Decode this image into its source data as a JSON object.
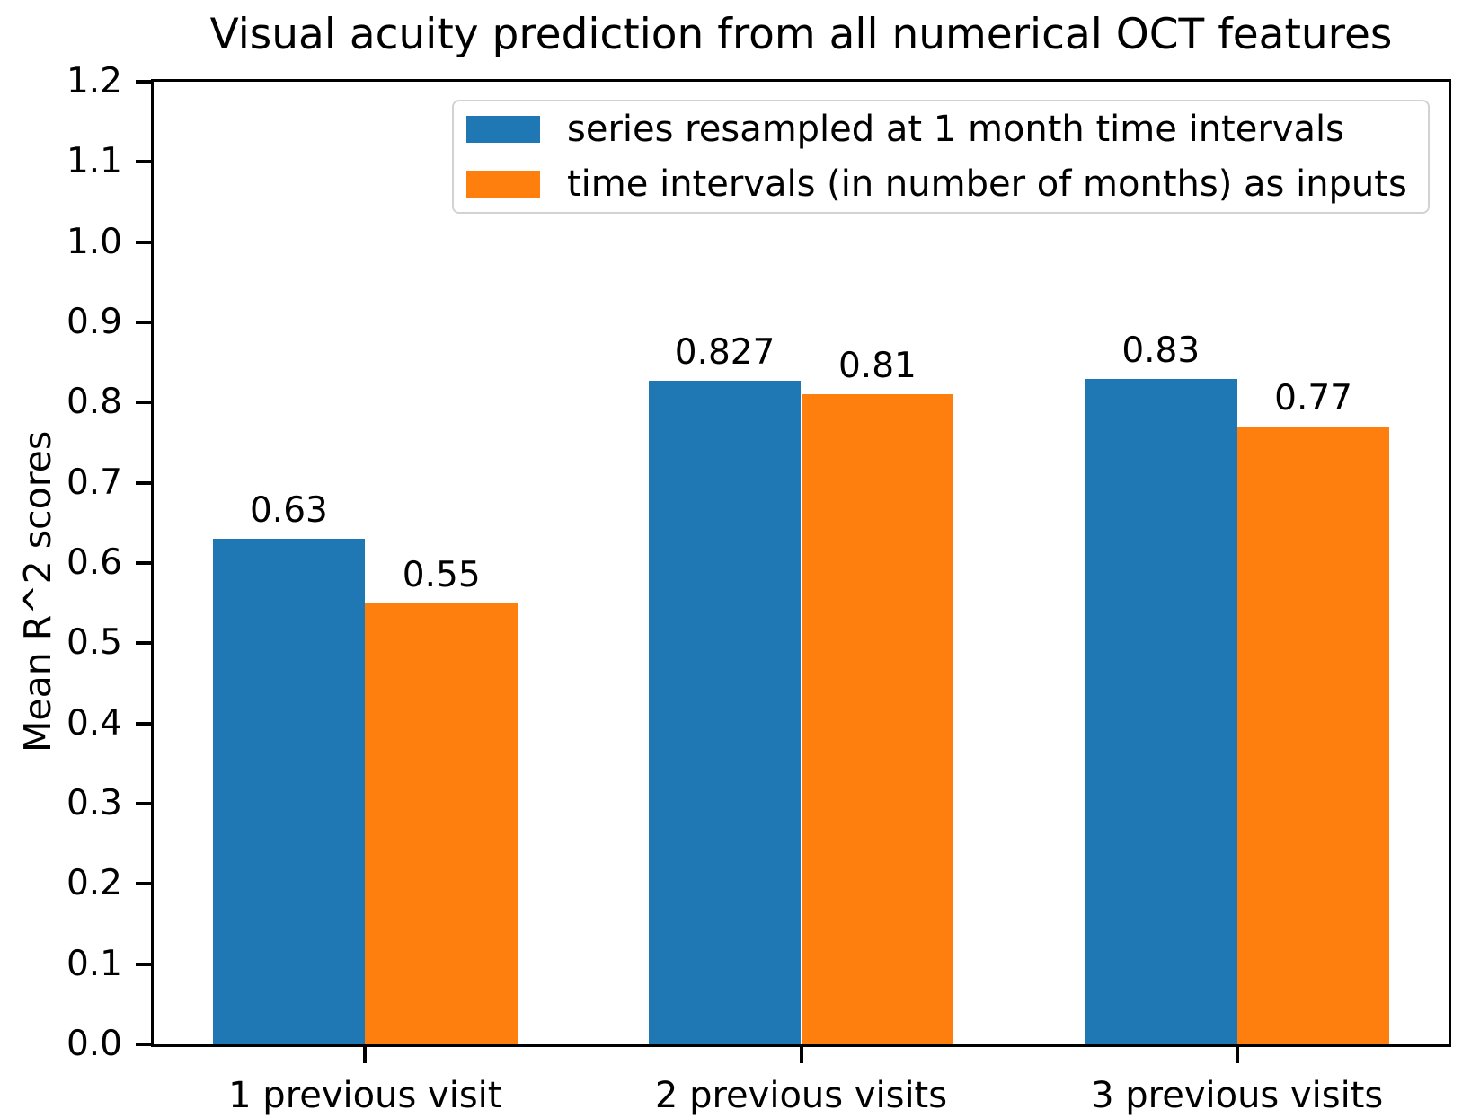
{
  "chart_data": {
    "type": "bar",
    "title": "Visual acuity prediction from all numerical OCT features",
    "xlabel": "",
    "ylabel": "Mean R^2 scores",
    "categories": [
      "1 previous visit",
      "2 previous visits",
      "3 previous visits"
    ],
    "series": [
      {
        "name": "series resampled at 1 month time intervals",
        "color": "#1f77b4",
        "values": [
          0.63,
          0.827,
          0.83
        ],
        "labels": [
          "0.63",
          "0.827",
          "0.83"
        ]
      },
      {
        "name": "time intervals (in number of months) as inputs",
        "color": "#ff7f0e",
        "values": [
          0.55,
          0.81,
          0.77
        ],
        "labels": [
          "0.55",
          "0.81",
          "0.77"
        ]
      }
    ],
    "ylim": [
      0.0,
      1.2
    ],
    "yticks": [
      0.0,
      0.1,
      0.2,
      0.3,
      0.4,
      0.5,
      0.6,
      0.7,
      0.8,
      0.9,
      1.0,
      1.1,
      1.2
    ],
    "xlim": [
      -0.485,
      2.485
    ],
    "bar_width_units": 0.35,
    "grid": false,
    "legend_position": "upper center",
    "spine_color": "#000000",
    "background_color": "#ffffff"
  }
}
